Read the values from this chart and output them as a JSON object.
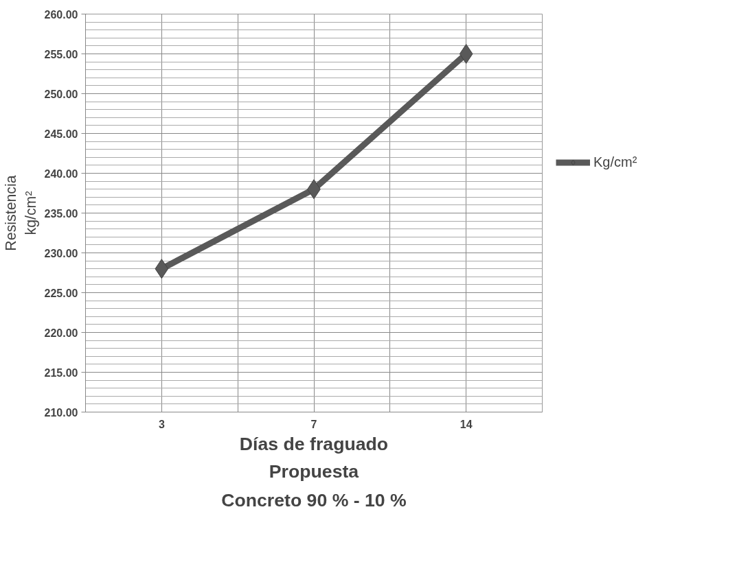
{
  "chart_data": {
    "type": "line",
    "xlabel": "Días de fraguado",
    "ylabel": "Resistencia\nkg/cm²",
    "annotations": [
      "Propuesta",
      "Concreto 90 % - 10 %"
    ],
    "categories": [
      "3",
      "7",
      "14"
    ],
    "series": [
      {
        "name": "Kg/cm²",
        "color": "#595959",
        "values": [
          228,
          238,
          255
        ]
      }
    ],
    "ylim": [
      210,
      260
    ],
    "yticks": [
      {
        "value": 210,
        "label": "210.00"
      },
      {
        "value": 215,
        "label": "215.00"
      },
      {
        "value": 220,
        "label": "220.00"
      },
      {
        "value": 225,
        "label": "225.00"
      },
      {
        "value": 230,
        "label": "230.00"
      },
      {
        "value": 235,
        "label": "235.00"
      },
      {
        "value": 240,
        "label": "240.00"
      },
      {
        "value": 245,
        "label": "245.00"
      },
      {
        "value": 250,
        "label": "250.00"
      },
      {
        "value": 255,
        "label": "255.00"
      },
      {
        "value": 260,
        "label": "260.00"
      }
    ],
    "grid": true,
    "legend": "right",
    "marker": "diamond",
    "line_style": "solid"
  }
}
